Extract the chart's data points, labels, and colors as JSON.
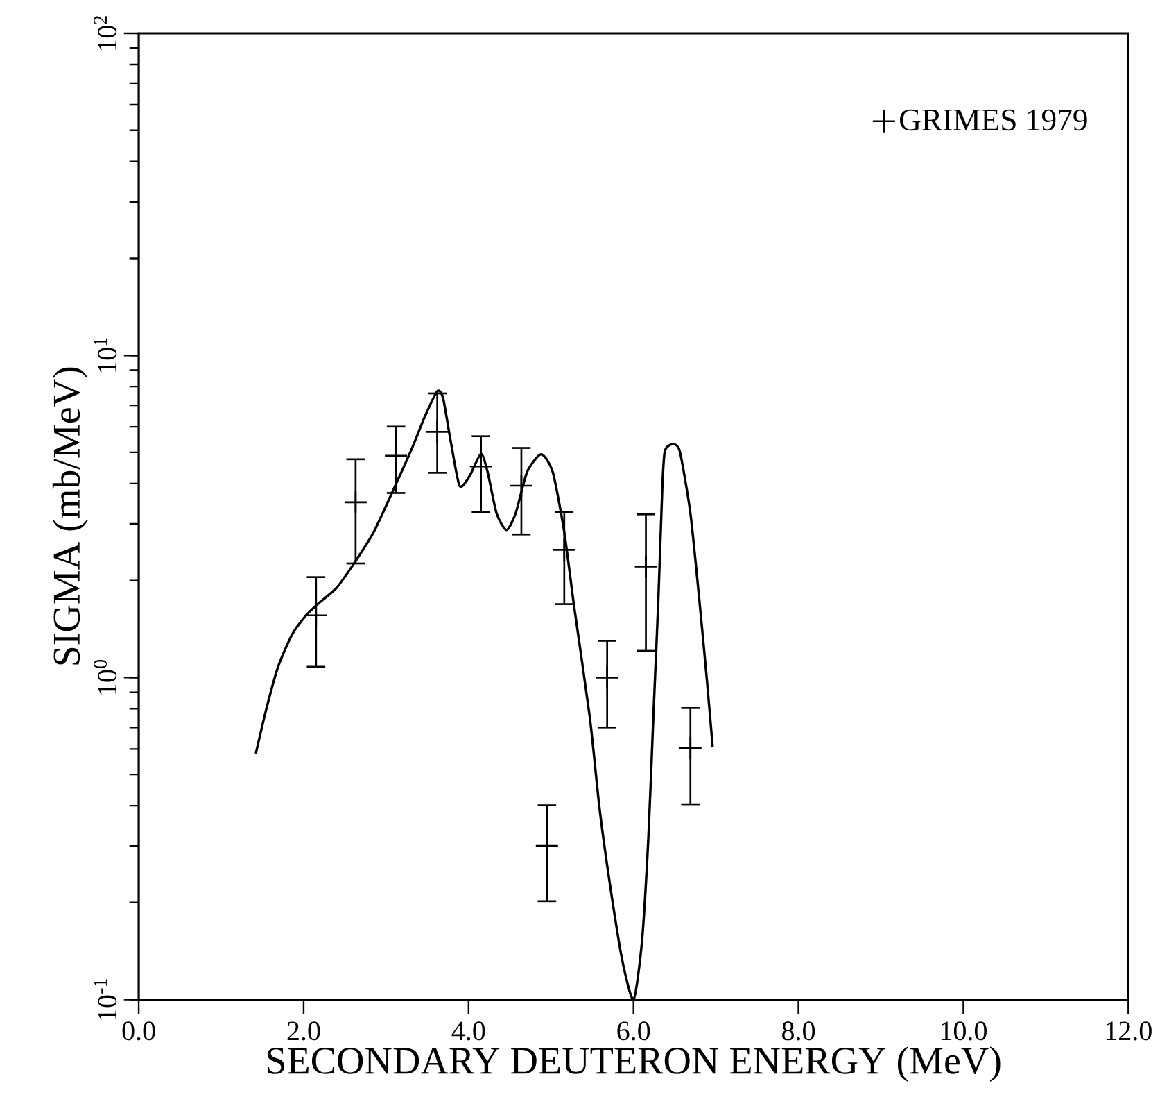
{
  "chart_data": {
    "type": "scatter",
    "xlabel": "SECONDARY DEUTERON ENERGY (MeV)",
    "ylabel": "SIGMA (mb/MeV)",
    "log": "y",
    "legend": "top right",
    "grid": false,
    "xlim": [
      0,
      12
    ],
    "ylim": [
      0.1,
      100
    ],
    "xticks": [
      {
        "value": 0,
        "label": "0.0"
      },
      {
        "value": 2,
        "label": "2.0"
      },
      {
        "value": 4,
        "label": "4.0"
      },
      {
        "value": 6,
        "label": "6.0"
      },
      {
        "value": 8,
        "label": "8.0"
      },
      {
        "value": 10,
        "label": "10.0"
      },
      {
        "value": 12,
        "label": "12.0"
      }
    ],
    "yticks": [
      {
        "value": 0.1,
        "label": "10$^{-1}$"
      },
      {
        "value": 1,
        "label": "10$^{0}$"
      },
      {
        "value": 10,
        "label": "10$^{1}$"
      },
      {
        "value": 100,
        "label": "10$^{2}$"
      }
    ],
    "series": [
      {
        "type": "line",
        "color": "#000000",
        "marker": "none",
        "line_style": "solid",
        "x": [
          1.42,
          1.55,
          1.69,
          1.86,
          2.03,
          2.17,
          2.4,
          2.62,
          2.85,
          3.07,
          3.3,
          3.47,
          3.62,
          3.69,
          3.78,
          3.89,
          4.01,
          4.15,
          4.23,
          4.34,
          4.46,
          4.57,
          4.71,
          4.88,
          5.02,
          5.16,
          5.28,
          5.47,
          5.59,
          5.73,
          5.87,
          6.0,
          6.1,
          6.18,
          6.24,
          6.3,
          6.35,
          6.38,
          6.47,
          6.56,
          6.69,
          6.8,
          6.89,
          6.96
        ],
        "values": [
          0.581,
          0.804,
          1.08,
          1.36,
          1.56,
          1.69,
          1.9,
          2.28,
          2.83,
          3.74,
          5.05,
          6.46,
          7.74,
          7.38,
          5.47,
          3.94,
          4.21,
          4.95,
          4.35,
          3.23,
          2.87,
          3.23,
          4.35,
          4.93,
          4.35,
          2.83,
          1.66,
          0.752,
          0.388,
          0.214,
          0.13,
          0.1,
          0.149,
          0.318,
          0.752,
          1.72,
          3.94,
          5.05,
          5.3,
          5.05,
          3.23,
          1.72,
          0.98,
          0.607
        ]
      },
      {
        "name": "GRIMES 1979",
        "color": "#000000",
        "marker": "cross",
        "x": [
          2.15,
          2.63,
          3.12,
          3.62,
          4.15,
          4.64,
          4.95,
          5.16,
          5.68,
          6.15,
          6.69
        ],
        "values": [
          1.56,
          3.5,
          4.88,
          5.79,
          4.52,
          3.94,
          0.3,
          2.49,
          1.0,
          2.21,
          0.603
        ],
        "errors": [
          [
            1.08,
            2.05
          ],
          [
            2.26,
            4.76
          ],
          [
            3.74,
            6.01
          ],
          [
            4.32,
            7.62
          ],
          [
            3.26,
            5.61
          ],
          [
            2.78,
            5.16
          ],
          [
            0.202,
            0.401
          ],
          [
            1.69,
            3.26
          ],
          [
            0.7,
            1.3
          ],
          [
            1.21,
            3.21
          ],
          [
            0.404,
            0.804
          ]
        ]
      }
    ]
  }
}
